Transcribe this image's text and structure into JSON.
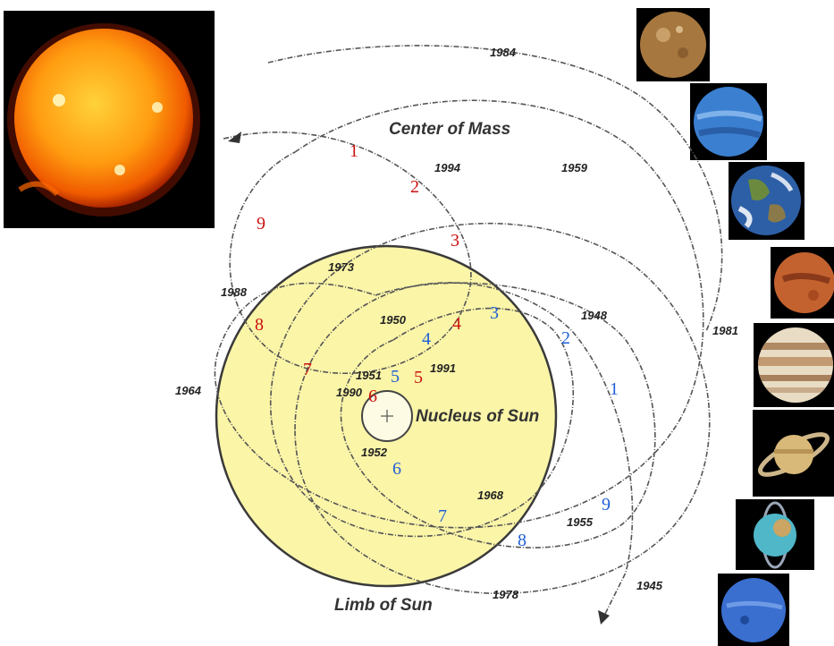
{
  "labels": {
    "center_of_mass": "Center of Mass",
    "nucleus_of_sun": "Nucleus of Sun",
    "limb_of_sun": "Limb of Sun"
  },
  "years": [
    "1984",
    "1994",
    "1959",
    "1973",
    "1988",
    "1950",
    "1948",
    "1981",
    "1951",
    "1991",
    "1990",
    "1964",
    "1952",
    "1968",
    "1955",
    "1978",
    "1945"
  ],
  "red_numbers": [
    "1",
    "2",
    "3",
    "4",
    "5",
    "6",
    "7",
    "8",
    "9"
  ],
  "blue_numbers": [
    "1",
    "2",
    "3",
    "4",
    "5",
    "6",
    "7",
    "8",
    "9"
  ],
  "colors": {
    "sun_disk": "#fbf5a8",
    "red_numbers": "#cc1111",
    "blue_numbers": "#1f5fd6",
    "orbit_path": "#555555"
  },
  "images": {
    "sun": "sun-photo",
    "planets": [
      "mercury",
      "venus",
      "earth",
      "mars",
      "jupiter",
      "saturn",
      "uranus",
      "neptune"
    ]
  }
}
